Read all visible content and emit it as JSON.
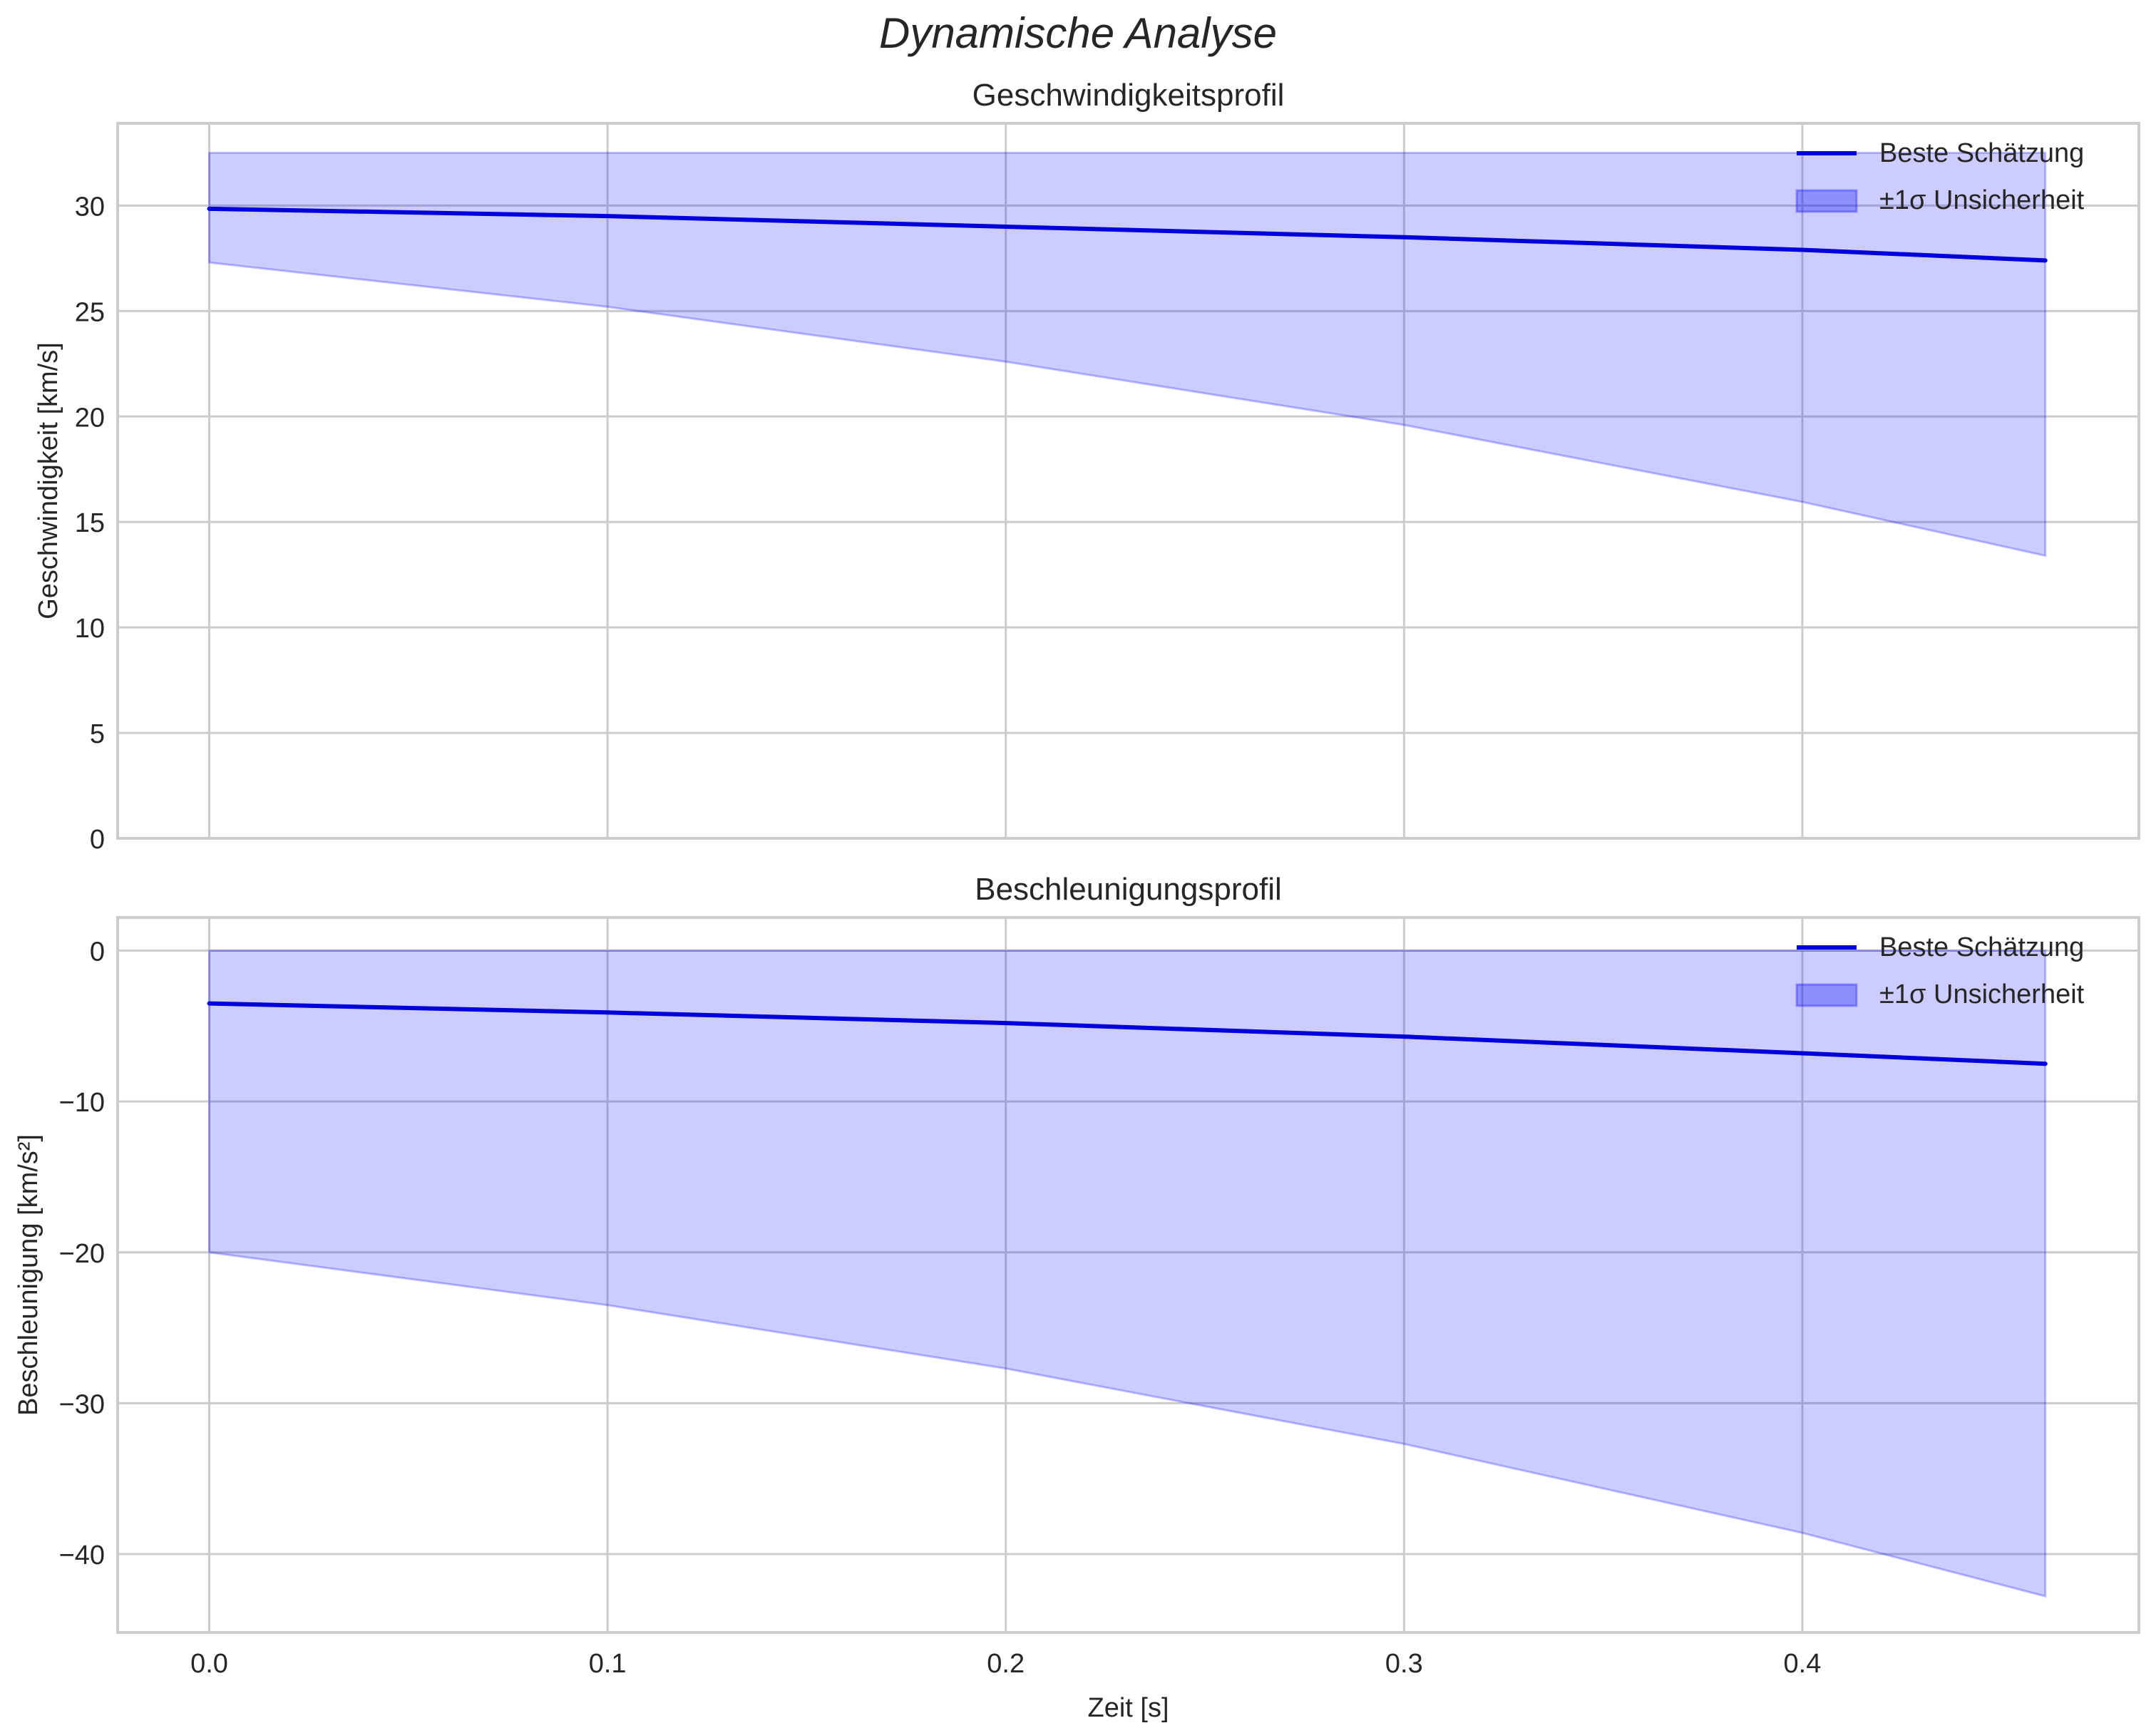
{
  "figure": {
    "suptitle": "Dynamische Analyse",
    "background": "#ffffff"
  },
  "style": {
    "line_color": "#0000dd",
    "band_color": "#0000ff",
    "band_alpha": 0.2,
    "grid_color": "#cccccc",
    "axis_color": "#cccccc"
  },
  "chart_data": [
    {
      "type": "line",
      "title": "Geschwindigkeitsprofil",
      "xlabel": "",
      "ylabel": "Geschwindigkeit [km/s]",
      "xlim": [
        -0.023,
        0.4845
      ],
      "ylim": [
        0,
        33.9
      ],
      "xticks": [
        0.0,
        0.1,
        0.2,
        0.3,
        0.4
      ],
      "xtick_labels_visible": false,
      "yticks": [
        0,
        5,
        10,
        15,
        20,
        25,
        30
      ],
      "grid": true,
      "legend": {
        "position": "upper right",
        "entries": [
          "Beste Schätzung",
          "±1σ Unsicherheit"
        ]
      },
      "x": [
        0.0,
        0.1,
        0.2,
        0.3,
        0.4,
        0.461
      ],
      "series": [
        {
          "name": "Beste Schätzung",
          "kind": "line",
          "values": [
            29.85,
            29.5,
            29.0,
            28.5,
            27.9,
            27.4
          ]
        },
        {
          "name": "±1σ Unsicherheit",
          "kind": "band",
          "upper": [
            32.5,
            32.5,
            32.5,
            32.5,
            32.5,
            32.5
          ],
          "lower": [
            27.3,
            25.2,
            22.6,
            19.6,
            15.95,
            13.4
          ]
        }
      ]
    },
    {
      "type": "line",
      "title": "Beschleunigungsprofil",
      "xlabel": "Zeit [s]",
      "ylabel": "Beschleunigung [km/s²]",
      "xlim": [
        -0.023,
        0.4845
      ],
      "ylim": [
        -45.2,
        2.2
      ],
      "xticks": [
        0.0,
        0.1,
        0.2,
        0.3,
        0.4
      ],
      "xtick_labels_visible": true,
      "yticks": [
        0,
        -10,
        -20,
        -30,
        -40
      ],
      "grid": true,
      "legend": {
        "position": "upper right",
        "entries": [
          "Beste Schätzung",
          "±1σ Unsicherheit"
        ]
      },
      "x": [
        0.0,
        0.1,
        0.2,
        0.3,
        0.4,
        0.461
      ],
      "series": [
        {
          "name": "Beste Schätzung",
          "kind": "line",
          "values": [
            -3.5,
            -4.1,
            -4.8,
            -5.7,
            -6.8,
            -7.5
          ]
        },
        {
          "name": "±1σ Unsicherheit",
          "kind": "band",
          "upper": [
            0,
            0,
            0,
            0,
            0,
            0
          ],
          "lower": [
            -20.0,
            -23.5,
            -27.7,
            -32.7,
            -38.6,
            -42.8
          ]
        }
      ]
    }
  ]
}
